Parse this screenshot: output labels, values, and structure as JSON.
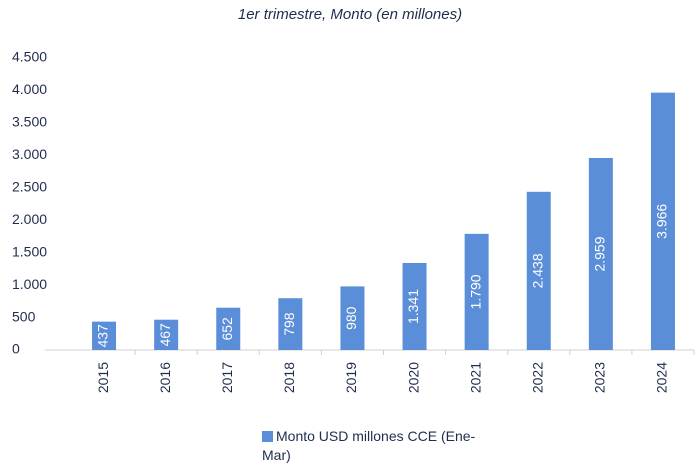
{
  "chart_data": {
    "type": "bar",
    "subtitle": "1er trimestre, Monto (en millones)",
    "categories": [
      "2015",
      "2016",
      "2017",
      "2018",
      "2019",
      "2020",
      "2021",
      "2022",
      "2023",
      "2024"
    ],
    "series": [
      {
        "name": "Monto  USD millones CCE (Ene-Mar)",
        "color": "#5b8ed8",
        "values": [
          437,
          467,
          652,
          798,
          980,
          1341,
          1790,
          2438,
          2959,
          3966
        ],
        "value_labels": [
          "437",
          "467",
          "652",
          "798",
          "980",
          "1.341",
          "1.790",
          "2.438",
          "2.959",
          "3.966"
        ]
      }
    ],
    "ylim": [
      0,
      4500
    ],
    "yticks": [
      0,
      500,
      {
        "value": 1000,
        "label": "1.000"
      },
      {
        "value": 1500,
        "label": "1.500"
      },
      {
        "value": 2000,
        "label": "2.000"
      },
      {
        "value": 2500,
        "label": "2.500"
      },
      {
        "value": 3000,
        "label": "3.000"
      },
      {
        "value": 3500,
        "label": "3.500"
      },
      {
        "value": 4000,
        "label": "4.000"
      },
      {
        "value": 4500,
        "label": "4.500"
      }
    ],
    "legend": "bottom"
  }
}
